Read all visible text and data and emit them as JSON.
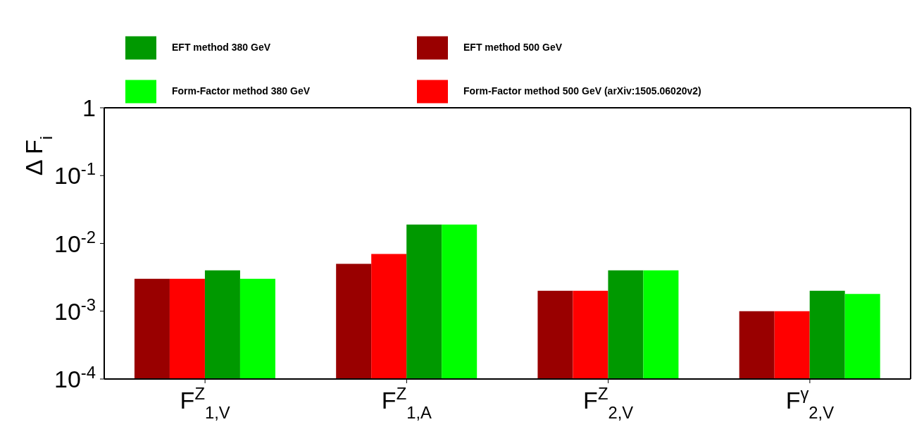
{
  "chart_data": {
    "type": "bar",
    "ylabel": "Δ F$_{i}$",
    "categories": [
      "F$^{Z}$$_{1,V}$",
      "F$^{Z}$$_{1,A}$",
      "F$^{Z}$$_{2,V}$",
      "F$^{γ}$$_{2,V}$"
    ],
    "series": [
      {
        "name": "EFT method 500 GeV",
        "color": "#990000",
        "values": [
          0.003,
          0.005,
          0.002,
          0.001
        ]
      },
      {
        "name": "Form-Factor method 500 GeV (arXiv:1505.06020v2)",
        "color": "#ff0000",
        "values": [
          0.003,
          0.007,
          0.002,
          0.001
        ]
      },
      {
        "name": "EFT method 380 GeV",
        "color": "#009900",
        "values": [
          0.004,
          0.019,
          0.004,
          0.002
        ]
      },
      {
        "name": "Form-Factor method 380 GeV",
        "color": "#00ff00",
        "values": [
          0.003,
          0.019,
          0.004,
          0.0018
        ]
      }
    ],
    "log": true,
    "ylim": [
      0.0001,
      1
    ],
    "yticks": [
      {
        "value": 0.0001,
        "label": "10$^{-4}$"
      },
      {
        "value": 0.001,
        "label": "10$^{-3}$"
      },
      {
        "value": 0.01,
        "label": "10$^{-2}$"
      },
      {
        "value": 0.1,
        "label": "10$^{-1}$"
      },
      1
    ],
    "legend": "top left"
  }
}
